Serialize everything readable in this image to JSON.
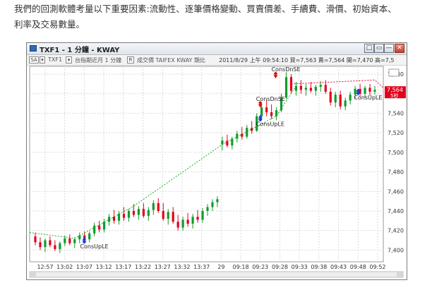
{
  "article": {
    "line1": "我們的回測軟體考量以下重要因素:流動性、逐筆價格變動、買賣價差、手續費、滑價、初始資本、",
    "line2": "利率及交易數量。"
  },
  "window": {
    "title": "TXF1 - 1 分鐘 - KWAY",
    "buttons": [
      "□",
      "▭",
      "—",
      "✕"
    ]
  },
  "toolbar": {
    "mode": "SA",
    "symbol": "TXF1",
    "indicator": "台指期近月 1 分鐘",
    "r_badge": "R",
    "exchange": "成交價 TAIFEX KWAY 類比",
    "quote": "2011/8/29 上午 09:54:10 買=7,563 賣=7,564 開=7,470 高=7,5"
  },
  "colors": {
    "up": "#119c2d",
    "down": "#e4001b",
    "signal_line": "#12b018",
    "stop_line": "#e4001b",
    "grid": "#d9d9d9",
    "price_tag": "#e4001b"
  },
  "chart_data": {
    "type": "candlestick",
    "y_ticks": [
      7400,
      7420,
      7440,
      7460,
      7480,
      7500,
      7520,
      7540,
      7560,
      7580
    ],
    "y_tick_labels": [
      "7,400",
      "7,420",
      "7,440",
      "7,460",
      "7,480",
      "7,500",
      "7,520",
      "7,540",
      "7,560",
      "7,580"
    ],
    "ylim": [
      7388,
      7588
    ],
    "x_tick_labels": [
      "12:57",
      "13:02",
      "13:07",
      "13:12",
      "13:17",
      "13:22",
      "13:27",
      "13:32",
      "13:37",
      "29",
      "09:18",
      "09:23",
      "09:28",
      "09:33",
      "09:38",
      "09:43",
      "09:48",
      "09:52"
    ],
    "current_price_tag": "7,564",
    "price_tag_sub": "5秒",
    "signals": [
      {
        "label": "ConsUpLE",
        "x_tick": "13:07",
        "price": 7412
      },
      {
        "label": "ConsDnSE",
        "x_tick": "09:23",
        "price": 7547
      },
      {
        "label": "ConsUpLE",
        "x_tick": "09:23",
        "price": 7537
      },
      {
        "label": "ConsDnSE",
        "x_tick": "09:28",
        "price": 7577
      },
      {
        "label": "ConsUpLE",
        "x_tick": "09:48",
        "price": 7564
      }
    ],
    "candles": [
      {
        "o": 7414,
        "h": 7418,
        "l": 7405,
        "c": 7408
      },
      {
        "o": 7408,
        "h": 7413,
        "l": 7400,
        "c": 7403
      },
      {
        "o": 7403,
        "h": 7412,
        "l": 7398,
        "c": 7410
      },
      {
        "o": 7410,
        "h": 7414,
        "l": 7403,
        "c": 7405
      },
      {
        "o": 7405,
        "h": 7410,
        "l": 7399,
        "c": 7401
      },
      {
        "o": 7401,
        "h": 7409,
        "l": 7397,
        "c": 7407
      },
      {
        "o": 7407,
        "h": 7415,
        "l": 7404,
        "c": 7412
      },
      {
        "o": 7412,
        "h": 7416,
        "l": 7405,
        "c": 7407
      },
      {
        "o": 7407,
        "h": 7413,
        "l": 7402,
        "c": 7411
      },
      {
        "o": 7411,
        "h": 7418,
        "l": 7407,
        "c": 7415
      },
      {
        "o": 7415,
        "h": 7419,
        "l": 7409,
        "c": 7411
      },
      {
        "o": 7411,
        "h": 7419,
        "l": 7408,
        "c": 7417
      },
      {
        "o": 7417,
        "h": 7428,
        "l": 7414,
        "c": 7425
      },
      {
        "o": 7425,
        "h": 7430,
        "l": 7418,
        "c": 7421
      },
      {
        "o": 7421,
        "h": 7432,
        "l": 7418,
        "c": 7429
      },
      {
        "o": 7429,
        "h": 7437,
        "l": 7425,
        "c": 7434
      },
      {
        "o": 7434,
        "h": 7441,
        "l": 7427,
        "c": 7430
      },
      {
        "o": 7430,
        "h": 7440,
        "l": 7426,
        "c": 7437
      },
      {
        "o": 7437,
        "h": 7444,
        "l": 7430,
        "c": 7433
      },
      {
        "o": 7433,
        "h": 7442,
        "l": 7429,
        "c": 7440
      },
      {
        "o": 7440,
        "h": 7447,
        "l": 7434,
        "c": 7436
      },
      {
        "o": 7436,
        "h": 7445,
        "l": 7431,
        "c": 7442
      },
      {
        "o": 7442,
        "h": 7448,
        "l": 7433,
        "c": 7435
      },
      {
        "o": 7435,
        "h": 7444,
        "l": 7430,
        "c": 7441
      },
      {
        "o": 7441,
        "h": 7451,
        "l": 7436,
        "c": 7448
      },
      {
        "o": 7448,
        "h": 7453,
        "l": 7438,
        "c": 7440
      },
      {
        "o": 7440,
        "h": 7448,
        "l": 7430,
        "c": 7432
      },
      {
        "o": 7432,
        "h": 7442,
        "l": 7426,
        "c": 7439
      },
      {
        "o": 7439,
        "h": 7444,
        "l": 7427,
        "c": 7429
      },
      {
        "o": 7429,
        "h": 7436,
        "l": 7420,
        "c": 7423
      },
      {
        "o": 7423,
        "h": 7434,
        "l": 7420,
        "c": 7431
      },
      {
        "o": 7431,
        "h": 7438,
        "l": 7424,
        "c": 7427
      },
      {
        "o": 7427,
        "h": 7437,
        "l": 7422,
        "c": 7434
      },
      {
        "o": 7434,
        "h": 7441,
        "l": 7428,
        "c": 7431
      },
      {
        "o": 7431,
        "h": 7443,
        "l": 7428,
        "c": 7440
      },
      {
        "o": 7440,
        "h": 7447,
        "l": 7435,
        "c": 7444
      },
      {
        "o": 7444,
        "h": 7452,
        "l": 7440,
        "c": 7449
      },
      {
        "o": 7449,
        "h": 7455,
        "l": 7444,
        "c": 7452
      },
      {
        "o": 7508,
        "h": 7516,
        "l": 7502,
        "c": 7512
      },
      {
        "o": 7512,
        "h": 7518,
        "l": 7505,
        "c": 7507
      },
      {
        "o": 7507,
        "h": 7516,
        "l": 7503,
        "c": 7514
      },
      {
        "o": 7514,
        "h": 7522,
        "l": 7510,
        "c": 7519
      },
      {
        "o": 7519,
        "h": 7526,
        "l": 7513,
        "c": 7516
      },
      {
        "o": 7516,
        "h": 7528,
        "l": 7514,
        "c": 7525
      },
      {
        "o": 7525,
        "h": 7532,
        "l": 7519,
        "c": 7522
      },
      {
        "o": 7522,
        "h": 7540,
        "l": 7521,
        "c": 7537
      },
      {
        "o": 7537,
        "h": 7550,
        "l": 7533,
        "c": 7546
      },
      {
        "o": 7546,
        "h": 7553,
        "l": 7537,
        "c": 7541
      },
      {
        "o": 7541,
        "h": 7549,
        "l": 7534,
        "c": 7537
      },
      {
        "o": 7537,
        "h": 7546,
        "l": 7533,
        "c": 7543
      },
      {
        "o": 7543,
        "h": 7560,
        "l": 7541,
        "c": 7556
      },
      {
        "o": 7556,
        "h": 7582,
        "l": 7554,
        "c": 7577
      },
      {
        "o": 7577,
        "h": 7580,
        "l": 7560,
        "c": 7563
      },
      {
        "o": 7563,
        "h": 7572,
        "l": 7558,
        "c": 7568
      },
      {
        "o": 7568,
        "h": 7574,
        "l": 7560,
        "c": 7564
      },
      {
        "o": 7564,
        "h": 7570,
        "l": 7558,
        "c": 7566
      },
      {
        "o": 7566,
        "h": 7572,
        "l": 7561,
        "c": 7563
      },
      {
        "o": 7563,
        "h": 7569,
        "l": 7558,
        "c": 7567
      },
      {
        "o": 7567,
        "h": 7573,
        "l": 7562,
        "c": 7569
      },
      {
        "o": 7569,
        "h": 7574,
        "l": 7560,
        "c": 7562
      },
      {
        "o": 7562,
        "h": 7566,
        "l": 7548,
        "c": 7551
      },
      {
        "o": 7551,
        "h": 7562,
        "l": 7546,
        "c": 7559
      },
      {
        "o": 7559,
        "h": 7563,
        "l": 7544,
        "c": 7547
      },
      {
        "o": 7547,
        "h": 7556,
        "l": 7543,
        "c": 7553
      },
      {
        "o": 7553,
        "h": 7562,
        "l": 7549,
        "c": 7559
      },
      {
        "o": 7559,
        "h": 7568,
        "l": 7555,
        "c": 7565
      },
      {
        "o": 7565,
        "h": 7570,
        "l": 7557,
        "c": 7560
      },
      {
        "o": 7560,
        "h": 7568,
        "l": 7556,
        "c": 7566
      },
      {
        "o": 7566,
        "h": 7570,
        "l": 7558,
        "c": 7562
      },
      {
        "o": 7562,
        "h": 7568,
        "l": 7559,
        "c": 7564
      }
    ]
  }
}
